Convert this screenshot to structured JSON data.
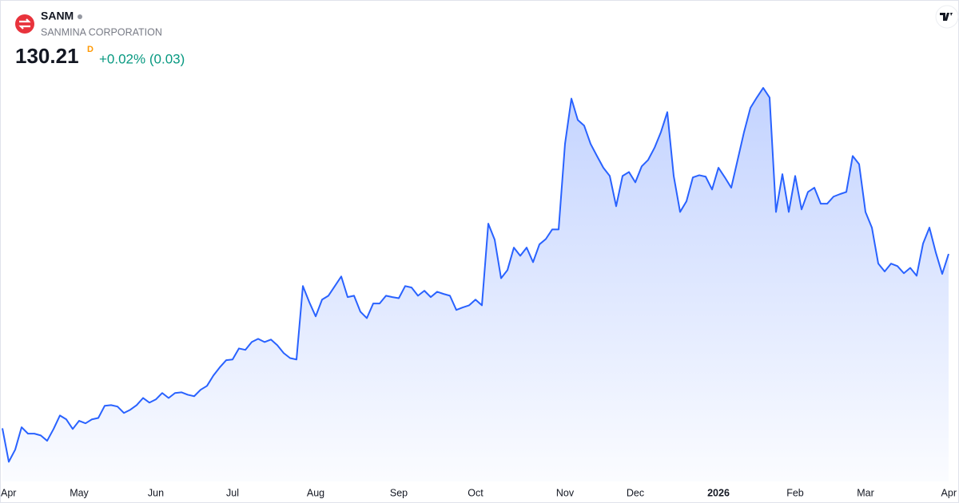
{
  "chart_data": {
    "type": "area",
    "title": "SANM",
    "subtitle": "SANMINA CORPORATION",
    "last_price": "130.21",
    "interval": "D",
    "change": "+0.02% (0.03)",
    "color": "#2962ff",
    "categories": [
      null,
      "Apr",
      null,
      null,
      null,
      null,
      null,
      null,
      null,
      null,
      null,
      null,
      "May",
      null,
      null,
      null,
      null,
      null,
      null,
      null,
      null,
      null,
      null,
      null,
      "Jun",
      null,
      null,
      null,
      null,
      null,
      null,
      null,
      null,
      null,
      null,
      null,
      "Jul",
      null,
      null,
      null,
      null,
      null,
      null,
      null,
      null,
      null,
      null,
      null,
      null,
      "Aug",
      null,
      null,
      null,
      null,
      null,
      null,
      null,
      null,
      null,
      null,
      null,
      null,
      "Sep",
      null,
      null,
      null,
      null,
      null,
      null,
      null,
      null,
      null,
      null,
      null,
      "Oct",
      null,
      null,
      null,
      null,
      null,
      null,
      null,
      null,
      null,
      null,
      null,
      null,
      null,
      "Nov",
      null,
      null,
      null,
      null,
      null,
      null,
      null,
      null,
      null,
      null,
      "Dec",
      null,
      null,
      null,
      null,
      null,
      null,
      null,
      null,
      null,
      null,
      null,
      null,
      "2026",
      null,
      null,
      null,
      null,
      null,
      null,
      null,
      null,
      null,
      null,
      null,
      "Feb",
      null,
      null,
      null,
      null,
      null,
      null,
      null,
      null,
      null,
      null,
      "Mar",
      null,
      null,
      null,
      null,
      null,
      null,
      null,
      null,
      null,
      null,
      null,
      null,
      "Apr"
    ],
    "values": [
      81.3,
      71.9,
      75.3,
      81.6,
      79.8,
      79.8,
      79.3,
      77.8,
      81.1,
      84.9,
      83.8,
      81.1,
      83.4,
      82.7,
      83.8,
      84.2,
      87.6,
      87.8,
      87.4,
      85.6,
      86.5,
      87.8,
      89.8,
      88.5,
      89.4,
      91.2,
      89.8,
      91.2,
      91.4,
      90.7,
      90.3,
      92.1,
      93.2,
      96.1,
      98.4,
      100.4,
      100.6,
      103.7,
      103.3,
      105.5,
      106.4,
      105.5,
      106.2,
      104.6,
      102.4,
      101.0,
      100.6,
      121.2,
      116.7,
      112.7,
      117.4,
      118.5,
      121.2,
      123.9,
      118.1,
      118.5,
      114.0,
      112.2,
      116.3,
      116.3,
      118.5,
      118.1,
      117.8,
      121.2,
      120.8,
      118.5,
      119.9,
      118.1,
      119.6,
      119.0,
      118.5,
      114.5,
      115.2,
      115.8,
      117.4,
      115.8,
      138.7,
      134.2,
      123.4,
      125.7,
      132.0,
      129.7,
      132.0,
      127.9,
      132.9,
      134.4,
      137.1,
      137.1,
      161.1,
      173.8,
      167.8,
      166.2,
      161.1,
      157.7,
      154.4,
      152.1,
      143.6,
      152.1,
      153.2,
      150.3,
      154.8,
      156.6,
      160.0,
      164.4,
      170.0,
      152.1,
      142.0,
      145.0,
      151.7,
      152.3,
      151.9,
      148.3,
      154.4,
      151.7,
      148.8,
      156.6,
      164.4,
      171.2,
      174.1,
      176.8,
      174.1,
      142.0,
      152.6,
      142.0,
      152.1,
      142.7,
      147.6,
      148.8,
      144.3,
      144.3,
      146.3,
      147.0,
      147.6,
      157.7,
      155.4,
      142.0,
      137.6,
      127.5,
      125.3,
      127.5,
      126.8,
      124.8,
      126.3,
      124.1,
      133.1,
      137.6,
      130.6,
      124.6,
      130.21
    ],
    "ylim": [
      69.3,
      181.3
    ]
  }
}
